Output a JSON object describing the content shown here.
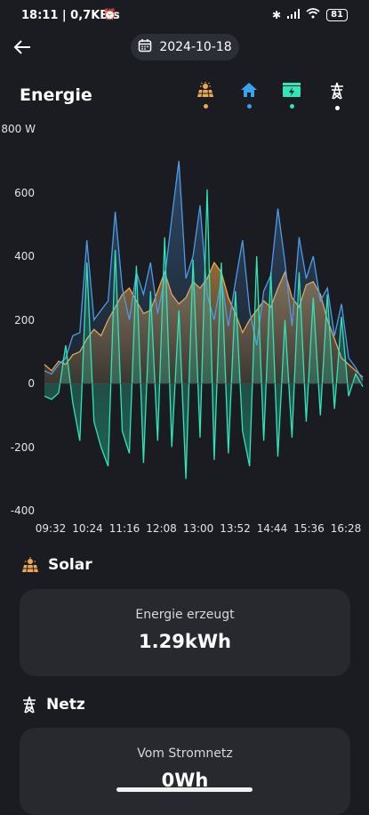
{
  "status_bar": {
    "time": "18:11 | 0,7KB/s",
    "battery": "81"
  },
  "header": {
    "date": "2024-10-18"
  },
  "page_title": "Energie",
  "tabs": [
    {
      "name": "solar",
      "color": "#f0a850"
    },
    {
      "name": "home",
      "color": "#3aa0f0"
    },
    {
      "name": "battery",
      "color": "#2ee6b8"
    },
    {
      "name": "grid",
      "color": "#ffffff"
    }
  ],
  "chart_data": {
    "type": "area",
    "unit": "W",
    "ylim": [
      -400,
      800
    ],
    "y_ticks": [
      "800 W",
      "600",
      "400",
      "200",
      "0",
      "-200",
      "-400"
    ],
    "x_ticks": [
      "09:32",
      "10:24",
      "11:16",
      "12:08",
      "13:00",
      "13:52",
      "14:44",
      "15:36",
      "16:28"
    ],
    "series": [
      {
        "name": "Solar",
        "color": "#f0a850",
        "values": [
          60,
          40,
          70,
          60,
          90,
          100,
          140,
          170,
          150,
          200,
          240,
          280,
          300,
          260,
          220,
          230,
          290,
          350,
          280,
          250,
          270,
          320,
          300,
          330,
          380,
          350,
          270,
          220,
          160,
          200,
          230,
          260,
          240,
          300,
          350,
          270,
          240,
          310,
          320,
          280,
          200,
          140,
          80,
          60,
          40,
          20
        ]
      },
      {
        "name": "Home",
        "color": "#4d9be8",
        "values": [
          40,
          30,
          60,
          80,
          150,
          160,
          450,
          200,
          230,
          260,
          540,
          300,
          200,
          350,
          280,
          380,
          220,
          330,
          520,
          700,
          330,
          400,
          560,
          280,
          200,
          330,
          180,
          320,
          450,
          230,
          120,
          290,
          340,
          550,
          380,
          180,
          460,
          330,
          400,
          260,
          300,
          150,
          250,
          80,
          50,
          10
        ]
      },
      {
        "name": "Batterie",
        "color": "#2ee6b8",
        "values": [
          -40,
          -50,
          -30,
          120,
          -60,
          -180,
          380,
          -120,
          -200,
          -260,
          420,
          -150,
          -220,
          370,
          -250,
          290,
          -180,
          460,
          -200,
          230,
          -300,
          390,
          -170,
          610,
          -240,
          380,
          -220,
          290,
          -150,
          -260,
          400,
          -180,
          350,
          -230,
          200,
          -170,
          350,
          -120,
          270,
          -100,
          280,
          -80,
          210,
          -40,
          30,
          -10
        ]
      }
    ]
  },
  "solar_section": {
    "title": "Solar",
    "label": "Energie erzeugt",
    "value": "1.29kWh"
  },
  "grid_section": {
    "title": "Netz",
    "label": "Vom Stromnetz",
    "value": "0Wh"
  }
}
